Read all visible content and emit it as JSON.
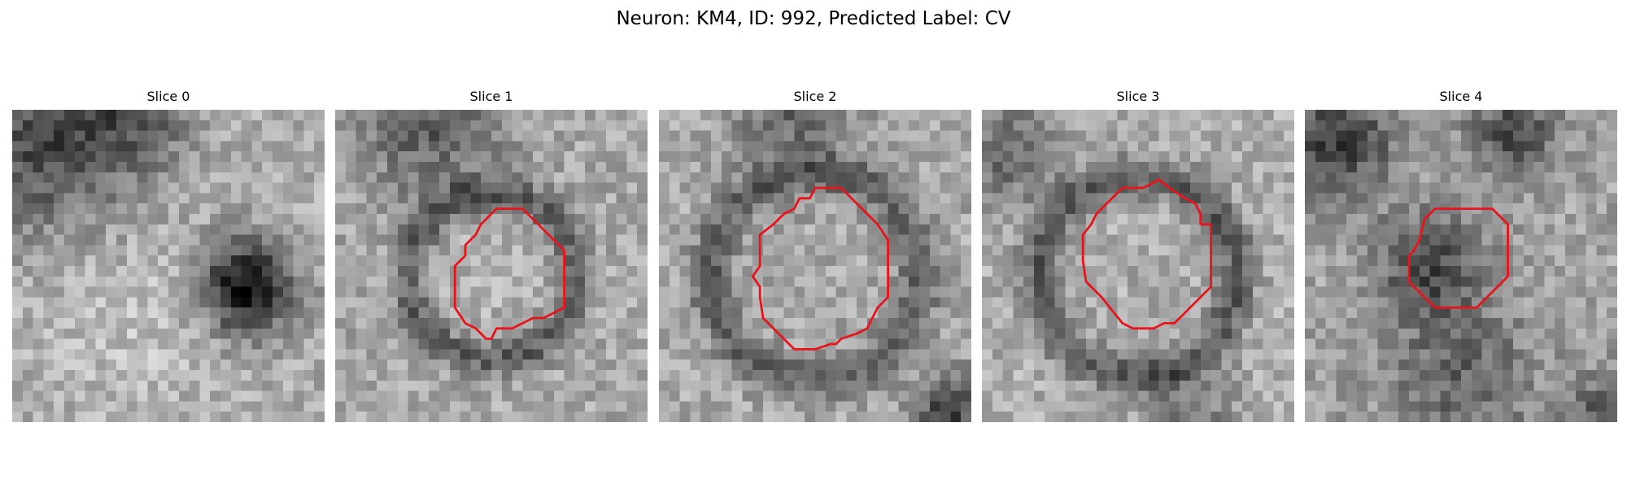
{
  "figure": {
    "title": "Neuron: KM4, ID: 992, Predicted Label: CV"
  },
  "contour_color": "#e8141b",
  "panels": [
    {
      "title": "Slice 0",
      "has_contour": false,
      "dark_blob": "right"
    },
    {
      "title": "Slice 1",
      "has_contour": true
    },
    {
      "title": "Slice 2",
      "has_contour": true
    },
    {
      "title": "Slice 3",
      "has_contour": true
    },
    {
      "title": "Slice 4",
      "has_contour": true
    }
  ]
}
